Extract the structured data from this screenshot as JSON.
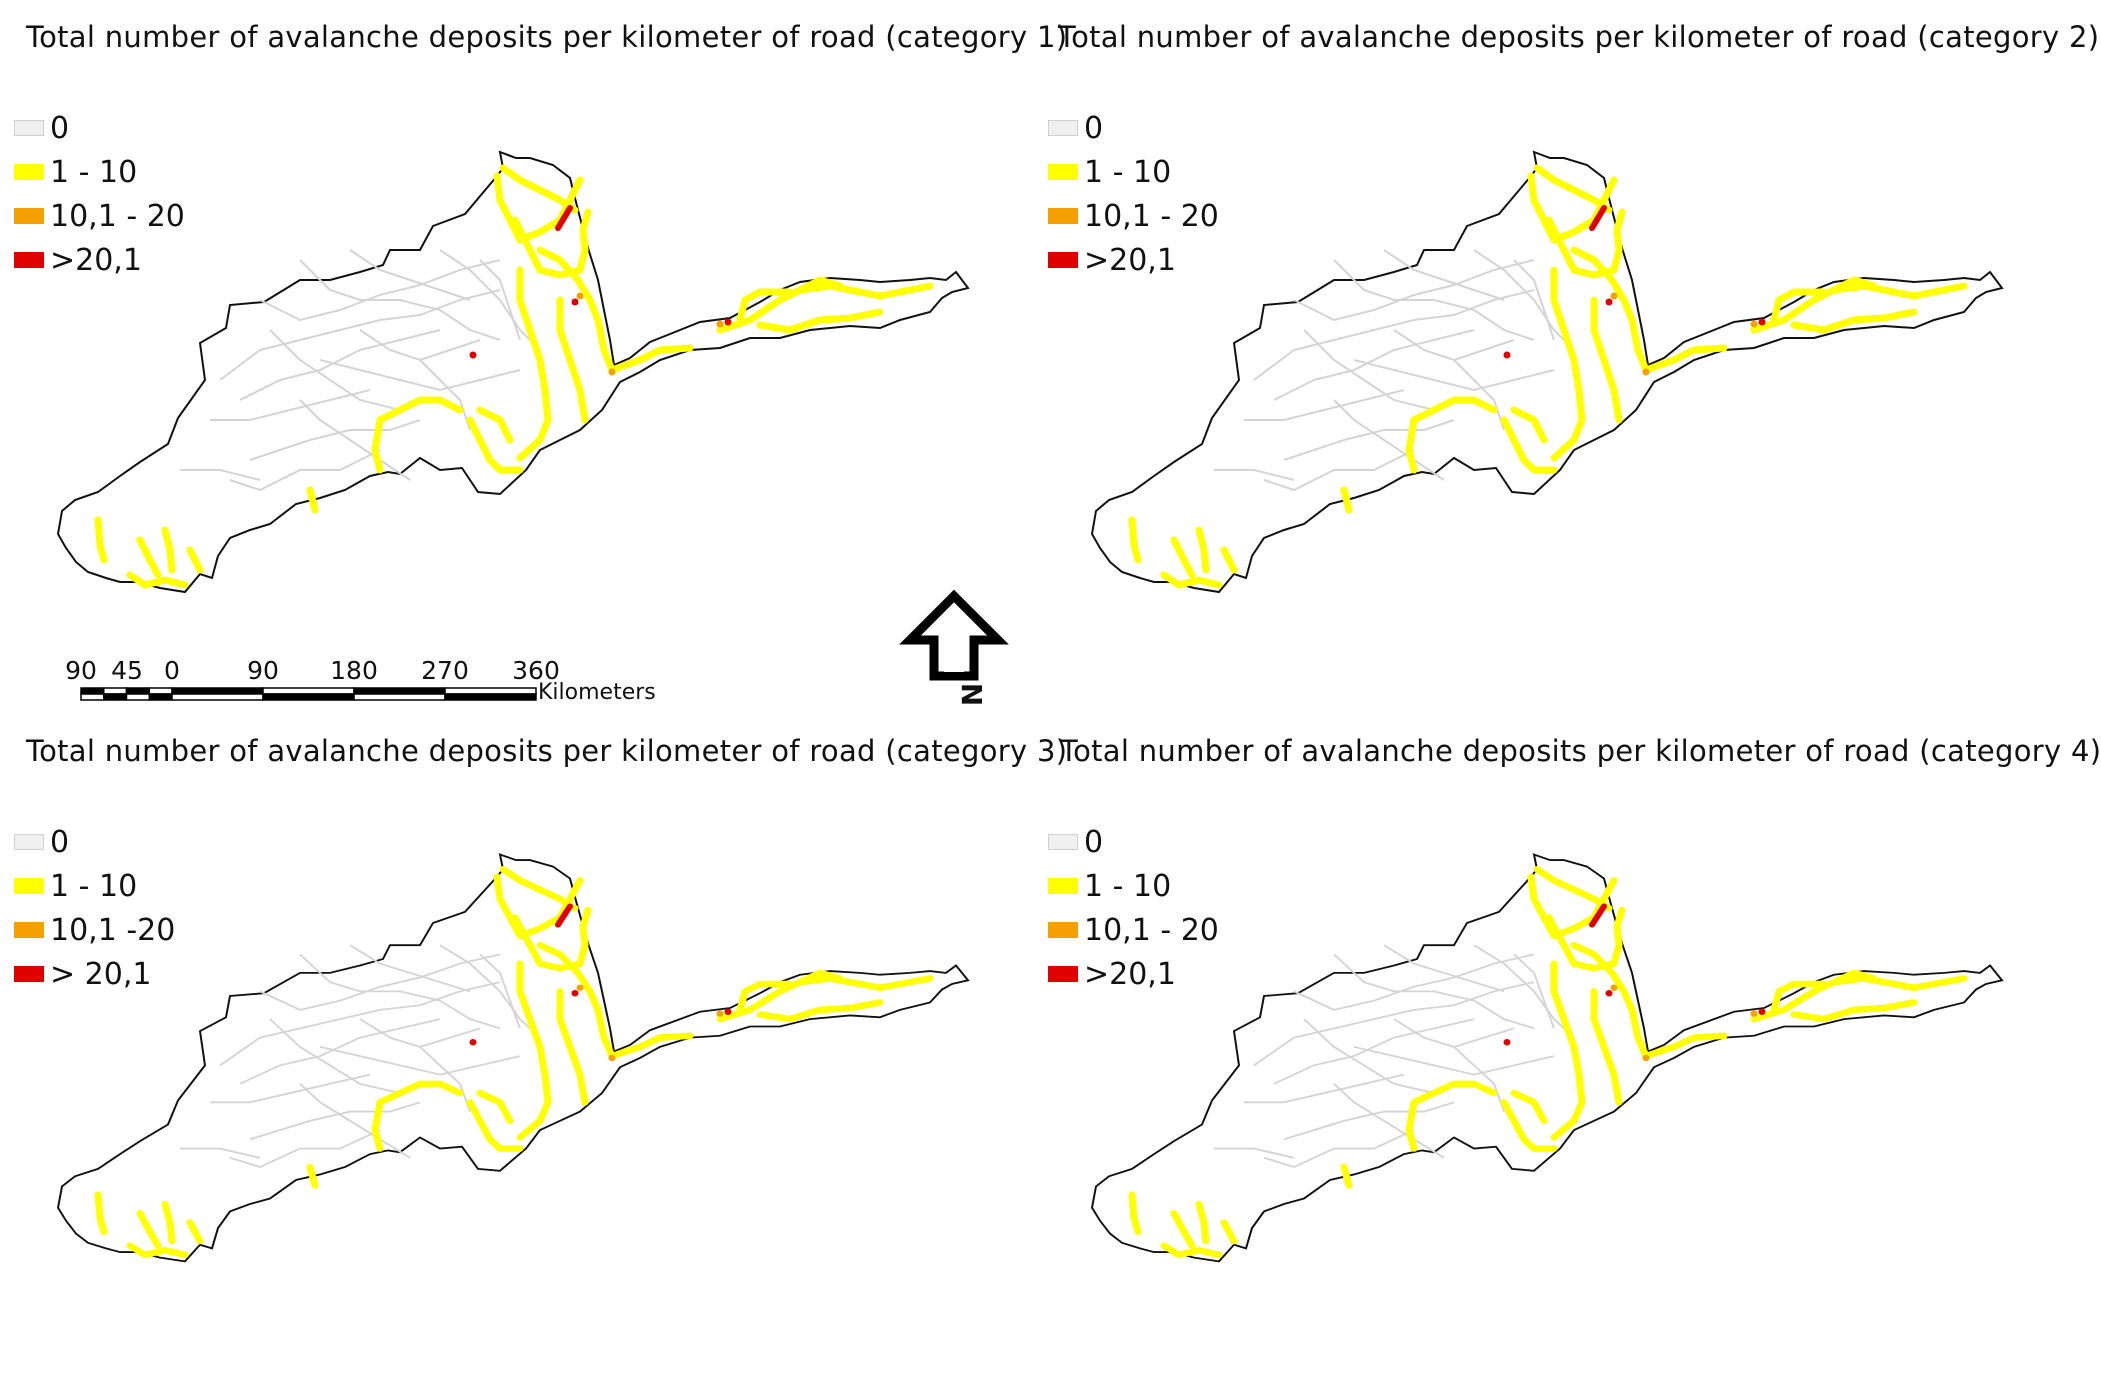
{
  "panels": [
    {
      "title": "Total number of avalanche deposits per kilometer of road (category 1)",
      "legend": [
        {
          "label": "0",
          "color": "#f0f0f0"
        },
        {
          "label": "1 - 10",
          "color": "#ffff00"
        },
        {
          "label": "10,1 - 20",
          "color": "#f5a000"
        },
        {
          "label": ">20,1",
          "color": "#e00000"
        }
      ]
    },
    {
      "title": "Total number of avalanche deposits per kilometer of road (category 2)",
      "legend": [
        {
          "label": "0",
          "color": "#f0f0f0"
        },
        {
          "label": "1 - 10",
          "color": "#ffff00"
        },
        {
          "label": "10,1 - 20",
          "color": "#f5a000"
        },
        {
          "label": ">20,1",
          "color": "#e00000"
        }
      ]
    },
    {
      "title": "Total number of avalanche deposits per kilometer of road (category 3)",
      "legend": [
        {
          "label": "0",
          "color": "#f0f0f0"
        },
        {
          "label": "1 - 10",
          "color": "#ffff00"
        },
        {
          "label": "10,1 -20",
          "color": "#f5a000"
        },
        {
          "label": "> 20,1",
          "color": "#e00000"
        }
      ]
    },
    {
      "title": "Total number of avalanche deposits per kilometer of road (category 4)",
      "legend": [
        {
          "label": "0",
          "color": "#f0f0f0"
        },
        {
          "label": "1 - 10",
          "color": "#ffff00"
        },
        {
          "label": "10,1 - 20",
          "color": "#f5a000"
        },
        {
          "label": ">20,1",
          "color": "#e00000"
        }
      ]
    }
  ],
  "scale": {
    "ticks": [
      "90",
      "45",
      "0",
      "90",
      "180",
      "270",
      "360"
    ],
    "unit": "Kilometers"
  },
  "north_arrow": {
    "letter": "N"
  },
  "colors": {
    "boundary": "#111111",
    "road_none": "#d4d4d4",
    "low": "#ffff00",
    "mid": "#f5a000",
    "high": "#e00000"
  }
}
